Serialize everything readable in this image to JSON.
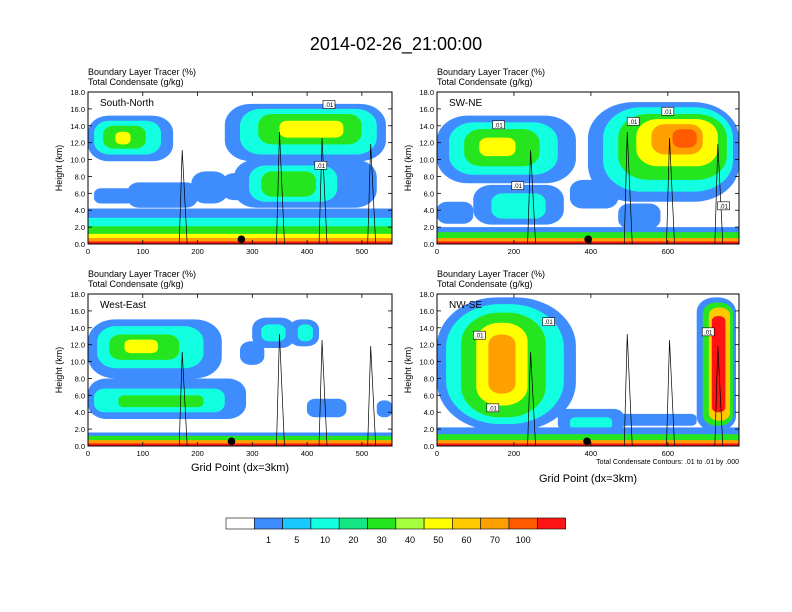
{
  "figure": {
    "title": "2014-02-26_21:00:00",
    "footnote": "Total Condensate Contours: .01 to .01 by .000",
    "xlabel": "Grid Point (dx=3km)"
  },
  "colorbar": {
    "colors": [
      "#ffffff",
      "#3f8cff",
      "#19c8ff",
      "#12ffe1",
      "#13e682",
      "#25e61e",
      "#a4ff3c",
      "#ffff00",
      "#ffc800",
      "#ffa000",
      "#ff5a00",
      "#ff1414"
    ],
    "labels": [
      "1",
      "5",
      "10",
      "20",
      "30",
      "40",
      "50",
      "60",
      "70",
      "100"
    ]
  },
  "chart_data": [
    {
      "type": "heatmap",
      "id": "south-north",
      "panel_label": "South-North",
      "title_line1": "Boundary Layer Tracer   (%)",
      "title_line2": "Total Condensate   (g/kg)",
      "xlabel": "",
      "ylabel": "Height (km)",
      "xlim": [
        0,
        555
      ],
      "ylim": [
        0,
        18
      ],
      "xticks": [
        "0",
        "100",
        "200",
        "300",
        "400",
        "500"
      ],
      "yticks": [
        "0.0",
        "2.0",
        "4.0",
        "6.0",
        "8.0",
        "10.0",
        "12.0",
        "14.0",
        "16.0",
        "18.0"
      ],
      "marker_x": 280,
      "contour_labels": [
        {
          "text": ".01",
          "x": 440,
          "y": 16.4
        },
        {
          "text": ".01",
          "x": 425,
          "y": 9.2
        }
      ]
    },
    {
      "type": "heatmap",
      "id": "sw-ne",
      "panel_label": "SW-NE",
      "title_line1": "Boundary Layer Tracer   (%)",
      "title_line2": "Total Condensate   (g/kg)",
      "xlabel": "",
      "ylabel": "Height (km)",
      "xlim": [
        0,
        785
      ],
      "ylim": [
        0,
        18
      ],
      "xticks": [
        "0",
        "200",
        "400",
        "600"
      ],
      "yticks": [
        "0.0",
        "2.0",
        "4.0",
        "6.0",
        "8.0",
        "10.0",
        "12.0",
        "14.0",
        "16.0",
        "18.0"
      ],
      "marker_x": 393,
      "contour_labels": [
        {
          "text": ".01",
          "x": 160,
          "y": 14.0
        },
        {
          "text": ".01",
          "x": 210,
          "y": 6.8
        },
        {
          "text": ".01",
          "x": 510,
          "y": 14.4
        },
        {
          "text": ".01",
          "x": 600,
          "y": 15.6
        },
        {
          "text": ".01",
          "x": 745,
          "y": 4.4
        }
      ]
    },
    {
      "type": "heatmap",
      "id": "west-east",
      "panel_label": "West-East",
      "title_line1": "Boundary Layer Tracer   (%)",
      "title_line2": "Total Condensate   (g/kg)",
      "xlabel": "Grid Point (dx=3km)",
      "ylabel": "Height (km)",
      "xlim": [
        0,
        555
      ],
      "ylim": [
        0,
        18
      ],
      "xticks": [
        "0",
        "100",
        "200",
        "300",
        "400",
        "500"
      ],
      "yticks": [
        "0.0",
        "2.0",
        "4.0",
        "6.0",
        "8.0",
        "10.0",
        "12.0",
        "14.0",
        "16.0",
        "18.0"
      ],
      "marker_x": 262,
      "contour_labels": []
    },
    {
      "type": "heatmap",
      "id": "nw-se",
      "panel_label": "NW-SE",
      "title_line1": "Boundary Layer Tracer   (%)",
      "title_line2": "Total Condensate   (g/kg)",
      "xlabel": "",
      "ylabel": "Height (km)",
      "xlim": [
        0,
        785
      ],
      "ylim": [
        0,
        18
      ],
      "xticks": [
        "0",
        "200",
        "400",
        "600"
      ],
      "yticks": [
        "0.0",
        "2.0",
        "4.0",
        "6.0",
        "8.0",
        "10.0",
        "12.0",
        "14.0",
        "16.0",
        "18.0"
      ],
      "marker_x": 390,
      "contour_labels": [
        {
          "text": ".01",
          "x": 110,
          "y": 13.0
        },
        {
          "text": ".01",
          "x": 290,
          "y": 14.6
        },
        {
          "text": ".01",
          "x": 145,
          "y": 4.4
        },
        {
          "text": ".01",
          "x": 705,
          "y": 13.4
        }
      ]
    }
  ]
}
